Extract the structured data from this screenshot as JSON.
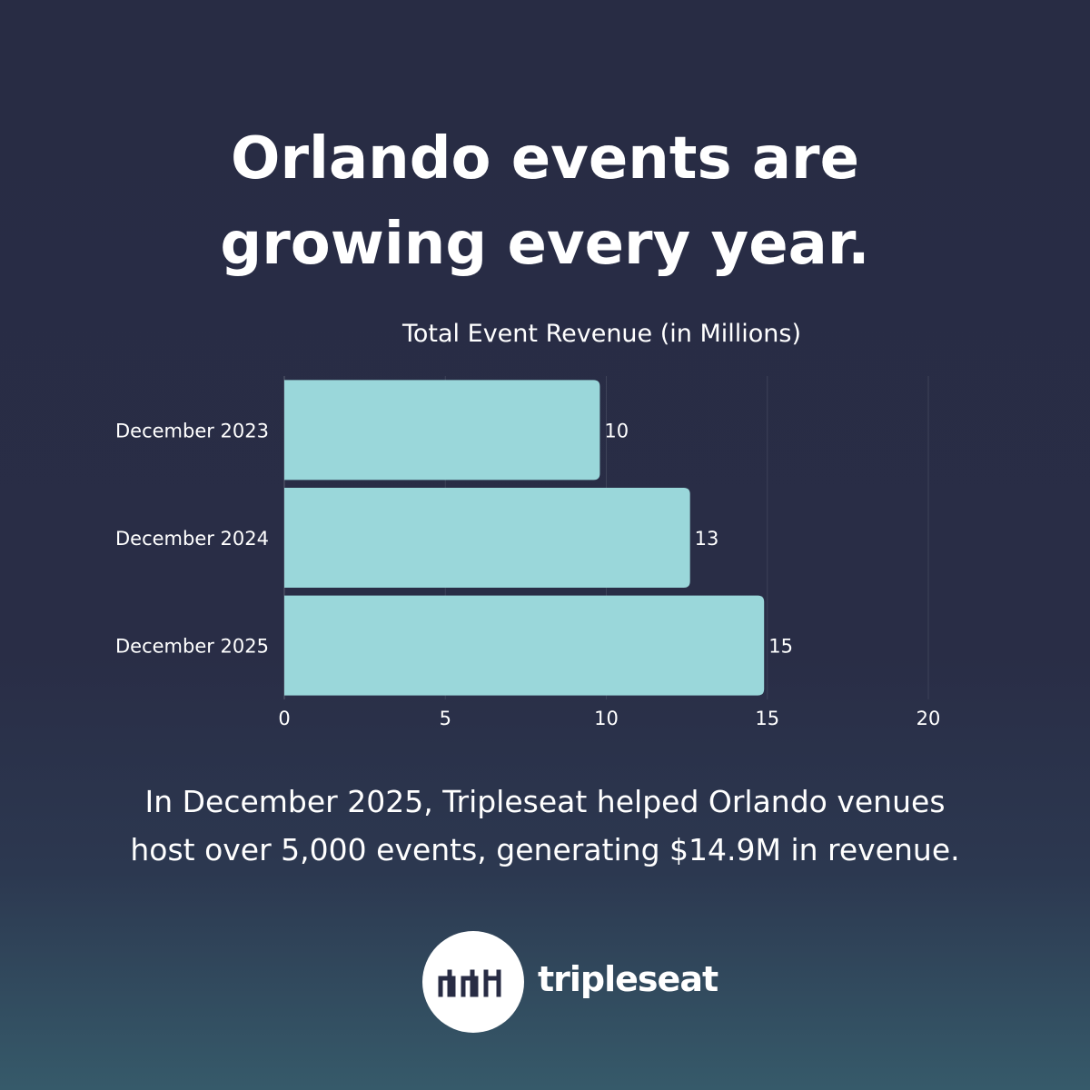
{
  "headline": {
    "line1": "Orlando events are",
    "line2": "growing every year."
  },
  "chart_data": {
    "type": "bar",
    "orientation": "horizontal",
    "title": "Total Event Revenue (in Millions)",
    "categories": [
      "December 2023",
      "December 2024",
      "December 2025"
    ],
    "values": [
      9.8,
      12.6,
      14.9
    ],
    "data_labels": [
      "10",
      "13",
      "15"
    ],
    "xlim": [
      0,
      20
    ],
    "x_ticks": [
      "0",
      "5",
      "10",
      "15",
      "20"
    ],
    "grid": "vertical",
    "bar_color": "#9ad7da",
    "xlabel": "",
    "ylabel": ""
  },
  "caption": {
    "line1": "In December 2025, Tripleseat helped Orlando venues",
    "line2": "host over 5,000 events, generating $14.9M in revenue."
  },
  "brand": {
    "name": "tripleseat",
    "logo_icon": "tripleseat-seats-icon"
  }
}
